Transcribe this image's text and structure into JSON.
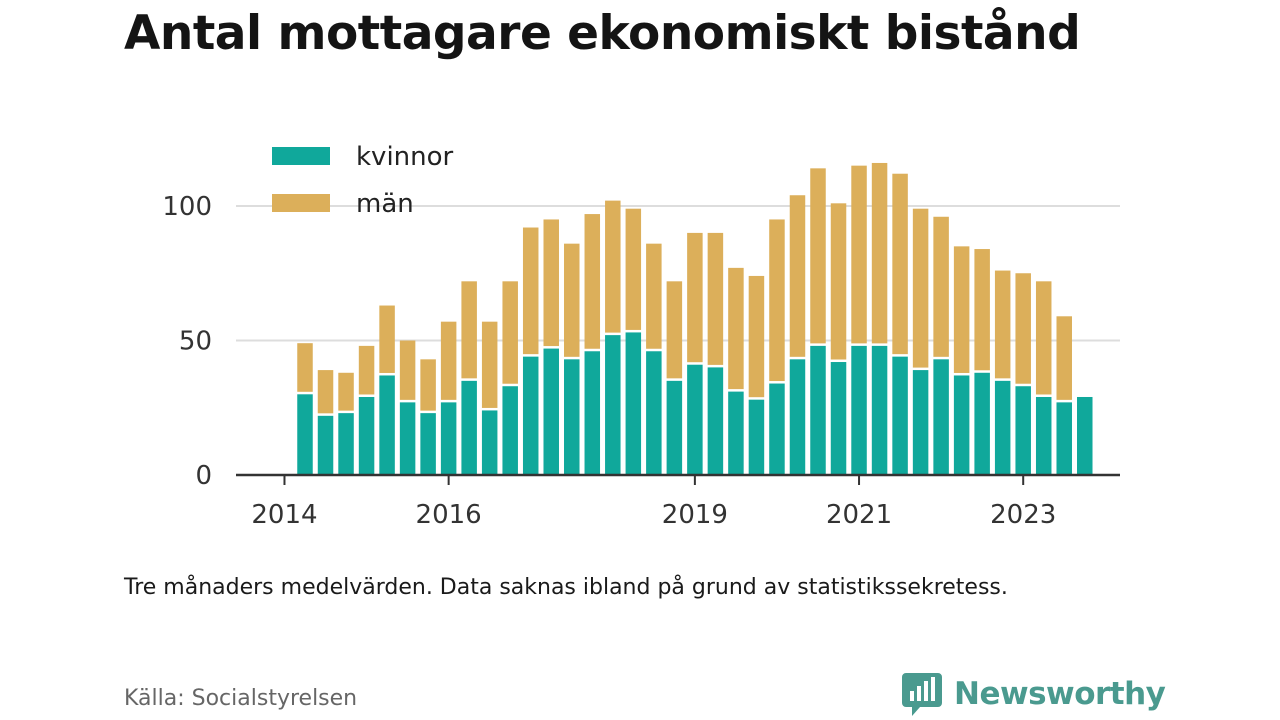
{
  "title": "Antal mottagare ekonomiskt bistånd",
  "note": "Tre månaders medelvärden. Data saknas ibland på grund av statistikssekretess.",
  "source": "Källa: Socialstyrelsen",
  "brand": "Newsworthy",
  "colors": {
    "kvinnor": "#10a89b",
    "man": "#dcaf5a",
    "brand": "#4a9a8f",
    "grid": "#dddddd",
    "axis": "#333333"
  },
  "icons": {
    "brand": "newsworthy-logo-icon"
  },
  "chart_data": {
    "type": "bar",
    "stacked": true,
    "grid": true,
    "legend_position": "top-left",
    "ylim": [
      0,
      120
    ],
    "y_ticks": [
      0,
      50,
      100
    ],
    "x_ticks": [
      "2014",
      "2016",
      "2019",
      "2021",
      "2023"
    ],
    "x_tick_positions": [
      "2014-01",
      "2016-01",
      "2019-01",
      "2021-01",
      "2023-01"
    ],
    "categories": [
      "2014-04",
      "2014-07",
      "2014-10",
      "2015-01",
      "2015-04",
      "2015-07",
      "2015-10",
      "2016-01",
      "2016-04",
      "2016-07",
      "2016-10",
      "2017-01",
      "2017-04",
      "2017-07",
      "2017-10",
      "2018-01",
      "2018-04",
      "2018-07",
      "2018-10",
      "2019-01",
      "2019-04",
      "2019-07",
      "2019-10",
      "2020-01",
      "2020-04",
      "2020-07",
      "2020-10",
      "2021-01",
      "2021-04",
      "2021-07",
      "2021-10",
      "2022-01",
      "2022-04",
      "2022-07",
      "2022-10",
      "2023-01",
      "2023-04",
      "2023-07",
      "2023-10"
    ],
    "series": [
      {
        "name": "kvinnor",
        "values": [
          30,
          22,
          23,
          29,
          37,
          27,
          23,
          27,
          35,
          24,
          33,
          44,
          47,
          43,
          46,
          52,
          53,
          46,
          35,
          41,
          40,
          31,
          28,
          34,
          43,
          48,
          42,
          48,
          48,
          44,
          39,
          43,
          37,
          38,
          35,
          33,
          29,
          27,
          29
        ]
      },
      {
        "name": "män",
        "values": [
          19,
          17,
          15,
          19,
          26,
          23,
          20,
          30,
          37,
          33,
          39,
          48,
          48,
          43,
          51,
          50,
          46,
          40,
          37,
          49,
          50,
          46,
          46,
          61,
          61,
          66,
          59,
          67,
          68,
          68,
          60,
          53,
          48,
          46,
          41,
          42,
          43,
          32,
          0
        ]
      }
    ]
  }
}
